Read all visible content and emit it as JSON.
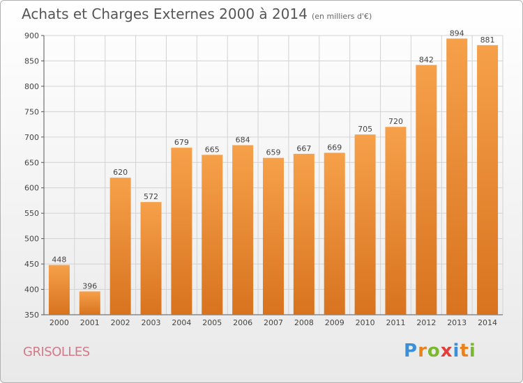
{
  "header": {
    "title": "Achats et Charges Externes 2000 à 2014",
    "subtitle": "(en milliers d'€)"
  },
  "footer": {
    "town": "GRISOLLES",
    "logo_text": "Proxiti",
    "logo_letter_colors": [
      "#3a8fd8",
      "#e8821e",
      "#7cb82f",
      "#e43d3d",
      "#3a8fd8",
      "#e8821e",
      "#7cb82f"
    ]
  },
  "colors": {
    "bar_top": "#f6a04a",
    "bar_bottom": "#d8731f",
    "grid": "#d2d2d2",
    "axis_text": "#444444"
  },
  "chart_data": {
    "type": "bar",
    "title": "Achats et Charges Externes 2000 à 2014",
    "subtitle": "(en milliers d'€)",
    "categories": [
      "2000",
      "2001",
      "2002",
      "2003",
      "2004",
      "2005",
      "2006",
      "2007",
      "2008",
      "2009",
      "2010",
      "2011",
      "2012",
      "2013",
      "2014"
    ],
    "values": [
      448,
      396,
      620,
      572,
      679,
      665,
      684,
      659,
      667,
      669,
      705,
      720,
      842,
      894,
      881
    ],
    "ylim": [
      350,
      900
    ],
    "yticks": [
      350,
      400,
      450,
      500,
      550,
      600,
      650,
      700,
      750,
      800,
      850,
      900
    ],
    "grid": true,
    "data_labels": true
  }
}
